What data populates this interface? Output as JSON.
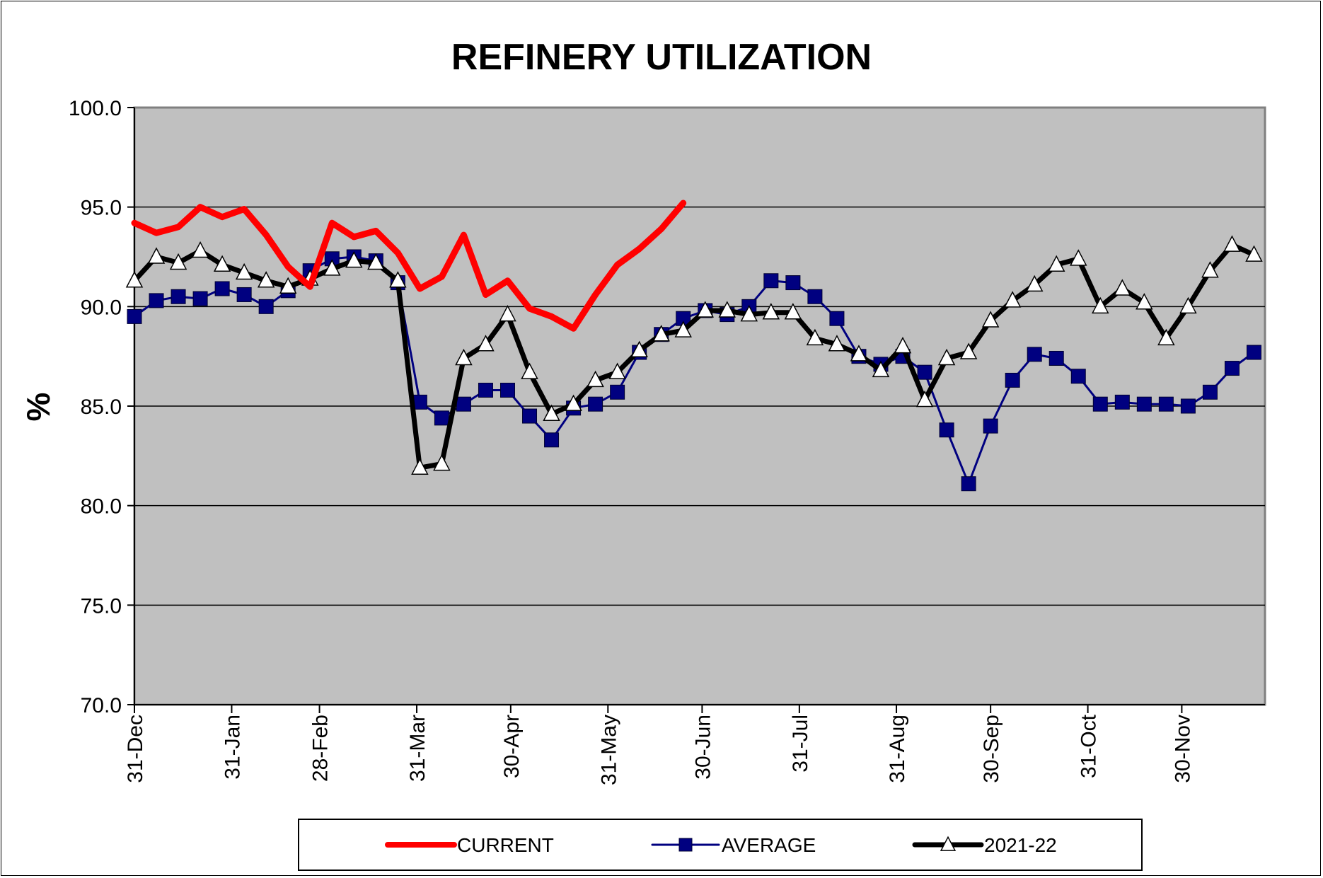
{
  "chart_data": {
    "type": "line",
    "title": "REFINERY UTILIZATION",
    "xlabel": "",
    "ylabel": "%",
    "ylim": [
      70,
      100
    ],
    "yticks": [
      70,
      75,
      80,
      85,
      90,
      95,
      100
    ],
    "ytick_labels": [
      "70.0",
      "75.0",
      "80.0",
      "85.0",
      "90.0",
      "95.0",
      "100.0"
    ],
    "x_unit": "week index",
    "xlim": [
      0,
      51.5
    ],
    "x_tick_positions": [
      0,
      4.43,
      8.43,
      12.86,
      17.14,
      21.57,
      25.86,
      30.29,
      34.71,
      39.0,
      43.43,
      47.71
    ],
    "x_tick_labels": [
      "31-Dec",
      "31-Jan",
      "28-Feb",
      "31-Mar",
      "30-Apr",
      "31-May",
      "30-Jun",
      "31-Jul",
      "31-Aug",
      "30-Sep",
      "31-Oct",
      "30-Nov"
    ],
    "grid": true,
    "legend_position": "bottom",
    "series": [
      {
        "name": "CURRENT",
        "color": "#ff0000",
        "marker": "none",
        "values": [
          94.2,
          93.7,
          94.0,
          95.0,
          94.5,
          94.9,
          93.6,
          92.0,
          91.0,
          94.2,
          93.5,
          93.8,
          92.7,
          90.9,
          91.5,
          93.6,
          90.6,
          91.3,
          89.9,
          89.5,
          88.9,
          90.6,
          92.1,
          92.9,
          93.9,
          95.2
        ]
      },
      {
        "name": "AVERAGE",
        "color": "#000080",
        "marker": "square",
        "values": [
          89.5,
          90.3,
          90.5,
          90.4,
          90.9,
          90.6,
          90.0,
          90.8,
          91.8,
          92.4,
          92.5,
          92.3,
          91.2,
          85.2,
          84.4,
          85.1,
          85.8,
          85.8,
          84.5,
          83.3,
          84.9,
          85.1,
          85.7,
          87.7,
          88.6,
          89.4,
          89.8,
          89.6,
          90.0,
          91.3,
          91.2,
          90.5,
          89.4,
          87.5,
          87.1,
          87.5,
          86.7,
          83.8,
          81.1,
          84.0,
          86.3,
          87.6,
          87.4,
          86.5,
          85.1,
          85.2,
          85.1,
          85.1,
          85.0,
          85.7,
          86.9,
          87.7
        ]
      },
      {
        "name": "2021-22",
        "color": "#000000",
        "marker": "triangle",
        "values": [
          91.3,
          92.5,
          92.2,
          92.8,
          92.1,
          91.7,
          91.3,
          91.0,
          91.4,
          91.9,
          92.3,
          92.2,
          91.3,
          81.9,
          82.1,
          87.4,
          88.1,
          89.6,
          86.7,
          84.6,
          85.1,
          86.3,
          86.7,
          87.8,
          88.6,
          88.8,
          89.8,
          89.8,
          89.6,
          89.7,
          89.7,
          88.4,
          88.1,
          87.6,
          86.8,
          88.0,
          85.3,
          87.4,
          87.7,
          89.3,
          90.3,
          91.1,
          92.1,
          92.4,
          90.0,
          90.9,
          90.2,
          88.4,
          90.0,
          91.8,
          93.1,
          92.6
        ]
      }
    ]
  }
}
